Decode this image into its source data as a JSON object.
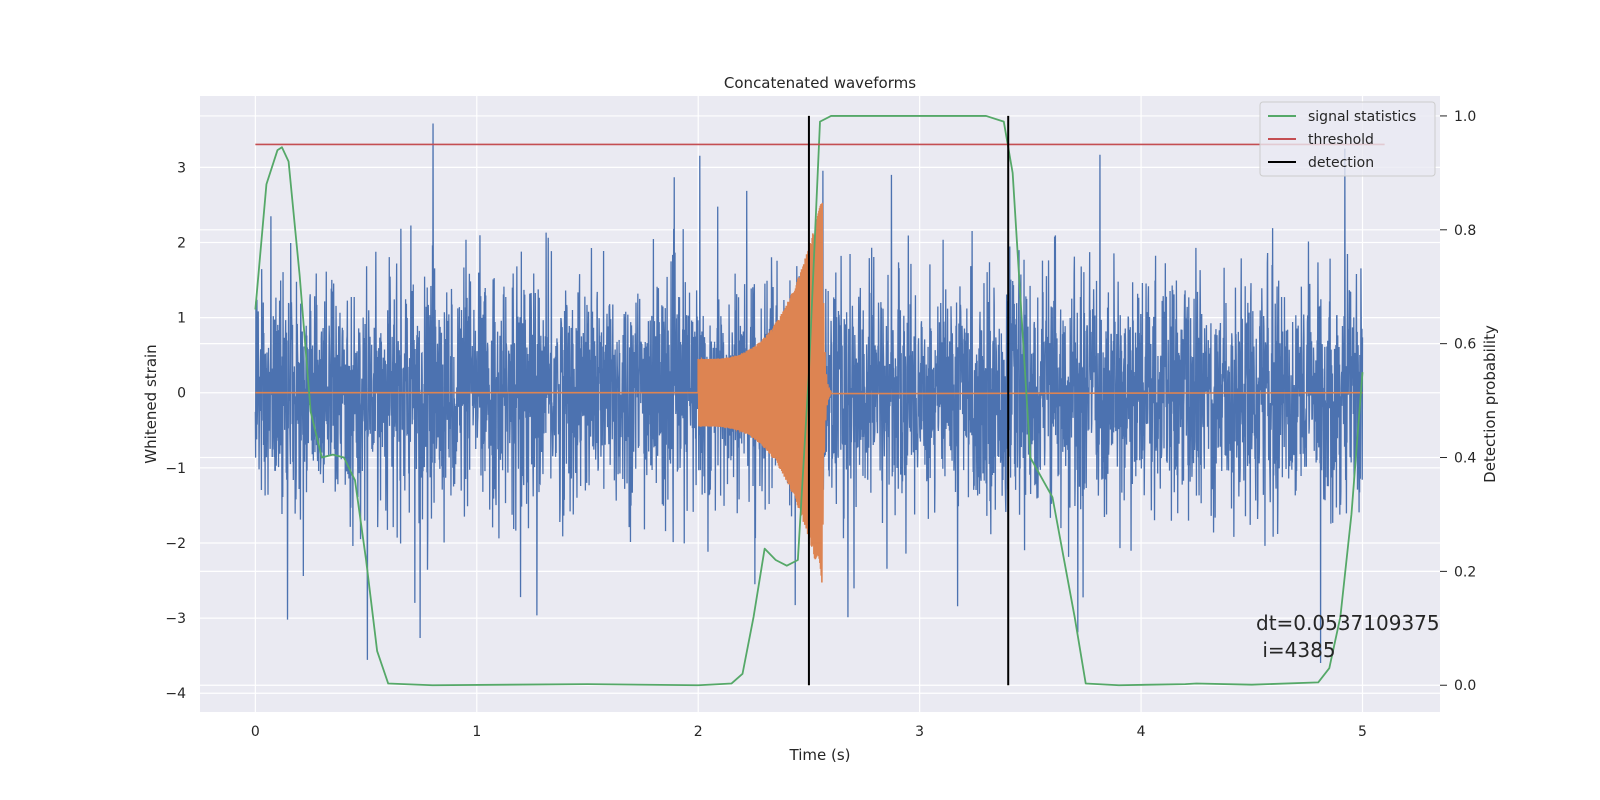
{
  "chart_data": {
    "type": "line",
    "title": "Concatenated waveforms",
    "xlabel": "Time (s)",
    "ylabel_left": "Whitened strain",
    "ylabel_right": "Detection probability",
    "xlim": [
      -0.25,
      5.35
    ],
    "ylim_left": [
      -4.25,
      3.95
    ],
    "ylim_right": [
      -0.047,
      1.035
    ],
    "x_ticks": [
      0,
      1,
      2,
      3,
      4,
      5
    ],
    "y_ticks_left": [
      -4,
      -3,
      -2,
      -1,
      0,
      1,
      2,
      3
    ],
    "y_ticks_right": [
      0.0,
      0.2,
      0.4,
      0.6,
      0.8,
      1.0
    ],
    "y_tick_labels_right": [
      "0.0",
      "0.2",
      "0.4",
      "0.6",
      "0.8",
      "1.0"
    ],
    "grid": true,
    "legend_position": "top-right",
    "series": [
      {
        "name": "",
        "axis": "left",
        "color": "#4c72b0",
        "kind": "whitened strain noise",
        "x_range": [
          0,
          5
        ],
        "approx_std": 0.75,
        "peak_max": 3.6,
        "peak_min": -3.9
      },
      {
        "name": "",
        "axis": "left",
        "color": "#dd8452",
        "kind": "injected chirp",
        "x_range": [
          0,
          5
        ],
        "chirp_start": 2.0,
        "chirp_peak": 2.56,
        "chirp_end": 2.6,
        "amplitude_start": 0.45,
        "amplitude_peak": 2.6
      },
      {
        "name": "signal statistics",
        "axis": "right",
        "color": "#55a868",
        "x": [
          0.0,
          0.05,
          0.1,
          0.12,
          0.15,
          0.2,
          0.25,
          0.3,
          0.35,
          0.4,
          0.45,
          0.5,
          0.55,
          0.6,
          0.8,
          1.5,
          2.0,
          2.15,
          2.2,
          2.25,
          2.3,
          2.35,
          2.4,
          2.45,
          2.5,
          2.55,
          2.6,
          3.3,
          3.38,
          3.42,
          3.5,
          3.6,
          3.7,
          3.75,
          3.9,
          4.2,
          4.25,
          4.5,
          4.8,
          4.85,
          4.9,
          4.95,
          5.0
        ],
        "values": [
          0.66,
          0.88,
          0.94,
          0.945,
          0.92,
          0.72,
          0.48,
          0.4,
          0.405,
          0.4,
          0.36,
          0.22,
          0.06,
          0.003,
          0.0,
          0.002,
          0.0,
          0.003,
          0.02,
          0.12,
          0.24,
          0.22,
          0.21,
          0.22,
          0.55,
          0.99,
          1.0,
          1.0,
          0.99,
          0.9,
          0.4,
          0.33,
          0.12,
          0.003,
          0.0,
          0.002,
          0.003,
          0.001,
          0.005,
          0.03,
          0.12,
          0.3,
          0.55
        ]
      },
      {
        "name": "threshold",
        "axis": "right",
        "color": "#c44e52",
        "x": [
          0,
          5.1
        ],
        "values": [
          0.95,
          0.95
        ]
      },
      {
        "name": "detection",
        "axis": "right",
        "color": "#000000",
        "x": [
          2.5,
          3.4
        ],
        "values_range": [
          0.0,
          1.0
        ]
      }
    ],
    "annotation": {
      "line1": "dt=0.0537109375",
      "line2": " i=4385",
      "x": 4.5,
      "y_right": 0.0
    }
  }
}
